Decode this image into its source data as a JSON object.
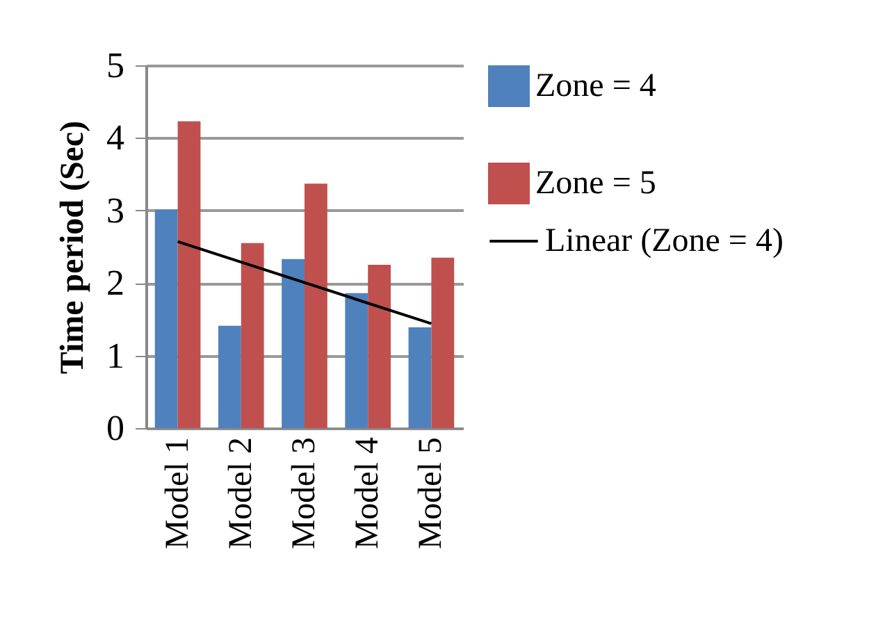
{
  "chart_data": {
    "type": "bar",
    "ylabel": "Time period (Sec)",
    "categories": [
      "Model 1",
      "Model 2",
      "Model 3",
      "Model 4",
      "Model 5"
    ],
    "ylim": [
      0,
      5
    ],
    "yticks": [
      0,
      1,
      2,
      3,
      4,
      5
    ],
    "grid": "y",
    "legend": "right",
    "series": [
      {
        "name": "Zone = 4",
        "color": "#4f81bd",
        "values": [
          3.01,
          1.41,
          2.33,
          1.86,
          1.39
        ]
      },
      {
        "name": "Zone = 5",
        "color": "#c0504d",
        "values": [
          4.23,
          2.55,
          3.37,
          2.25,
          2.35
        ]
      },
      {
        "name": "Linear (Zone = 4)",
        "type": "line",
        "color": "#000000",
        "x": [
          "Model 1",
          "Model 5"
        ],
        "values": [
          2.57,
          1.44
        ]
      }
    ]
  }
}
